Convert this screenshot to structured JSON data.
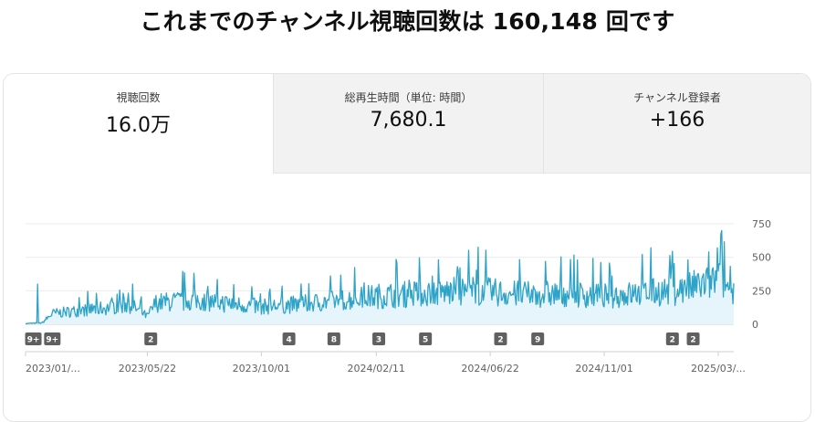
{
  "headline": "これまでのチャンネル視聴回数は 160,148 回です",
  "tabs": [
    {
      "label": "視聴回数",
      "value": "16.0万"
    },
    {
      "label": "総再生時間（単位: 時間）",
      "value": "7,680.1"
    },
    {
      "label": "チャンネル登録者",
      "value": "+166"
    }
  ],
  "chart_data": {
    "type": "area",
    "line_color": "#2ea3c8",
    "fill_color": "#e6f4fb",
    "badge_color": "#606060",
    "y_ticks": [
      "750",
      "500",
      "250",
      "0"
    ],
    "ylim": [
      0,
      750
    ],
    "x_ticks": [
      "2023/01/...",
      "2023/05/22",
      "2023/10/01",
      "2024/02/11",
      "2024/06/22",
      "2024/11/01",
      "2025/03/..."
    ],
    "x_range": [
      "2023-01-01",
      "2025-03-31"
    ],
    "weekly_avg": [
      {
        "x": "2023-01-01",
        "y": 5
      },
      {
        "x": "2023-01-20",
        "y": 10
      },
      {
        "x": "2023-02-01",
        "y": 80
      },
      {
        "x": "2023-03-01",
        "y": 100
      },
      {
        "x": "2023-04-01",
        "y": 120
      },
      {
        "x": "2023-05-01",
        "y": 150
      },
      {
        "x": "2023-05-22",
        "y": 60
      },
      {
        "x": "2023-06-01",
        "y": 160
      },
      {
        "x": "2023-07-15",
        "y": 180
      },
      {
        "x": "2023-09-01",
        "y": 150
      },
      {
        "x": "2023-10-01",
        "y": 130
      },
      {
        "x": "2023-11-15",
        "y": 150
      },
      {
        "x": "2024-01-01",
        "y": 180
      },
      {
        "x": "2024-02-11",
        "y": 210
      },
      {
        "x": "2024-04-01",
        "y": 230
      },
      {
        "x": "2024-06-01",
        "y": 250
      },
      {
        "x": "2024-06-22",
        "y": 240
      },
      {
        "x": "2024-08-01",
        "y": 220
      },
      {
        "x": "2024-09-15",
        "y": 230
      },
      {
        "x": "2024-11-01",
        "y": 210
      },
      {
        "x": "2024-12-15",
        "y": 230
      },
      {
        "x": "2025-02-01",
        "y": 260
      },
      {
        "x": "2025-03-15",
        "y": 330
      },
      {
        "x": "2025-03-31",
        "y": 230
      }
    ],
    "peaks": [
      {
        "x": "2023-01-15",
        "y": 300
      },
      {
        "x": "2023-05-05",
        "y": 300
      },
      {
        "x": "2023-09-20",
        "y": 280
      },
      {
        "x": "2024-03-20",
        "y": 330
      },
      {
        "x": "2024-05-15",
        "y": 430
      },
      {
        "x": "2024-06-08",
        "y": 575
      },
      {
        "x": "2024-08-25",
        "y": 470
      },
      {
        "x": "2024-10-01",
        "y": 480
      },
      {
        "x": "2024-12-25",
        "y": 570
      },
      {
        "x": "2025-03-02",
        "y": 540
      },
      {
        "x": "2025-03-12",
        "y": 570
      },
      {
        "x": "2025-03-20",
        "y": 615
      }
    ],
    "annotations": [
      {
        "x": "2023-01-10",
        "label": "9+"
      },
      {
        "x": "2023-02-01",
        "label": "9+"
      },
      {
        "x": "2023-05-26",
        "label": "2"
      },
      {
        "x": "2023-11-02",
        "label": "4"
      },
      {
        "x": "2023-12-24",
        "label": "8"
      },
      {
        "x": "2024-02-14",
        "label": "3"
      },
      {
        "x": "2024-04-08",
        "label": "5"
      },
      {
        "x": "2024-07-04",
        "label": "2"
      },
      {
        "x": "2024-08-16",
        "label": "9"
      },
      {
        "x": "2025-01-19",
        "label": "2"
      },
      {
        "x": "2025-02-12",
        "label": "2"
      }
    ]
  }
}
